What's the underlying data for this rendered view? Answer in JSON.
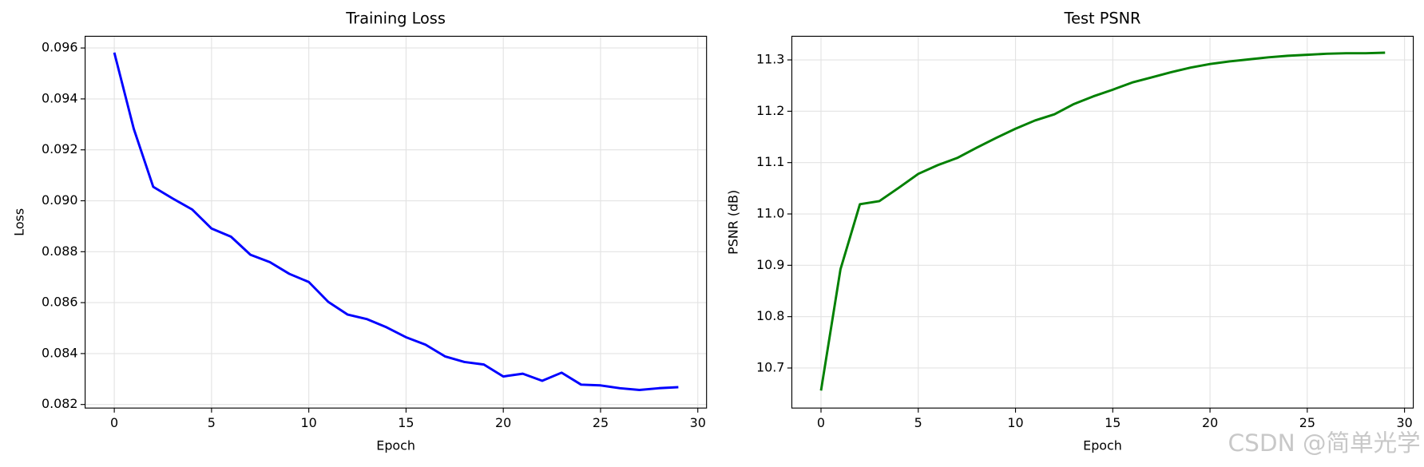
{
  "chart_data": [
    {
      "type": "line",
      "title": "Training Loss",
      "xlabel": "Epoch",
      "ylabel": "Loss",
      "x": [
        0,
        1,
        2,
        3,
        4,
        5,
        6,
        7,
        8,
        9,
        10,
        11,
        12,
        13,
        14,
        15,
        16,
        17,
        18,
        19,
        20,
        21,
        22,
        23,
        24,
        25,
        26,
        27,
        28,
        29
      ],
      "series": [
        {
          "color": "#0000ff",
          "values": [
            0.09582,
            0.09283,
            0.09055,
            0.09009,
            0.08966,
            0.08891,
            0.08859,
            0.08788,
            0.08759,
            0.08713,
            0.08681,
            0.08603,
            0.08553,
            0.08535,
            0.08503,
            0.08464,
            0.08435,
            0.08389,
            0.08367,
            0.08357,
            0.0831,
            0.08321,
            0.08293,
            0.08325,
            0.08278,
            0.08275,
            0.08264,
            0.08257,
            0.08264,
            0.08268
          ]
        }
      ],
      "xlim": [
        -1.5,
        30.45
      ],
      "xticks": [
        0,
        5,
        10,
        15,
        20,
        25,
        30
      ],
      "ylim": [
        0.08186,
        0.09646
      ],
      "yticks": [
        0.082,
        0.084,
        0.086,
        0.088,
        {
          "value": 0.09,
          "label": "0.090"
        },
        0.092,
        0.094,
        0.096
      ],
      "grid": true
    },
    {
      "type": "line",
      "title": "Test PSNR",
      "xlabel": "Epoch",
      "ylabel": "PSNR (dB)",
      "x": [
        0,
        1,
        2,
        3,
        4,
        5,
        6,
        7,
        8,
        9,
        10,
        11,
        12,
        13,
        14,
        15,
        16,
        17,
        18,
        19,
        20,
        21,
        22,
        23,
        24,
        25,
        26,
        27,
        28,
        29
      ],
      "series": [
        {
          "color": "#008000",
          "values": [
            10.656,
            10.892,
            11.019,
            11.025,
            11.051,
            11.078,
            11.095,
            11.109,
            11.129,
            11.148,
            11.166,
            11.182,
            11.194,
            11.214,
            11.229,
            11.242,
            11.256,
            11.266,
            11.276,
            11.285,
            11.292,
            11.297,
            11.301,
            11.305,
            11.308,
            11.31,
            11.312,
            11.313,
            11.313,
            11.314
          ]
        }
      ],
      "xlim": [
        -1.5,
        30.45
      ],
      "xticks": [
        0,
        5,
        10,
        15,
        20,
        25,
        30
      ],
      "ylim": [
        10.622,
        11.346
      ],
      "yticks": [
        10.7,
        10.8,
        10.9,
        {
          "value": 11,
          "label": "11.0"
        },
        11.1,
        11.2,
        11.3
      ],
      "grid": true
    }
  ],
  "watermark": "CSDN @简单光学"
}
